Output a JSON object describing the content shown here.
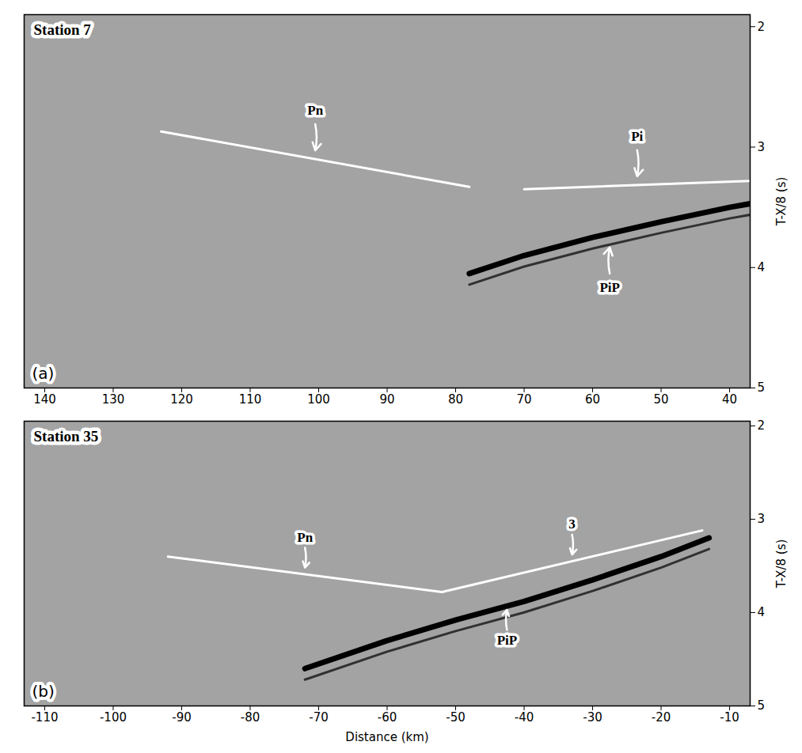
{
  "chart_data": [
    {
      "type": "line",
      "title": "Station 7",
      "panel_label": "(a)",
      "x_label": null,
      "y_label": "T-X/8 (s)",
      "xlim": [
        143,
        37
      ],
      "xticks": [
        140,
        130,
        120,
        110,
        100,
        90,
        80,
        70,
        60,
        50,
        40
      ],
      "ylim": [
        5,
        1.9
      ],
      "yticks": [
        2,
        3,
        4,
        5
      ],
      "series": [
        {
          "name": "Pn",
          "color": "#ffffff",
          "x": [
            123,
            78
          ],
          "values": [
            2.87,
            3.33
          ]
        },
        {
          "name": "Pi",
          "color": "#ffffff",
          "x": [
            70,
            37
          ],
          "values": [
            3.35,
            3.28
          ]
        },
        {
          "name": "PiP",
          "color": "#000000",
          "x": [
            78,
            70,
            60,
            50,
            40,
            37
          ],
          "values": [
            4.05,
            3.9,
            3.75,
            3.62,
            3.5,
            3.47
          ]
        }
      ]
    },
    {
      "type": "line",
      "title": "Station 35",
      "panel_label": "(b)",
      "x_label": "Distance (km)",
      "y_label": "T-X/8 (s)",
      "xlim": [
        -113,
        -7
      ],
      "xticks": [
        -110,
        -100,
        -90,
        -80,
        -70,
        -60,
        -50,
        -40,
        -30,
        -20,
        -10
      ],
      "ylim": [
        5,
        1.95
      ],
      "yticks": [
        2,
        3,
        4,
        5
      ],
      "series": [
        {
          "name": "Pn",
          "color": "#ffffff",
          "x": [
            -92,
            -52
          ],
          "values": [
            3.4,
            3.78
          ]
        },
        {
          "name": "3",
          "color": "#ffffff",
          "x": [
            -52,
            -14
          ],
          "values": [
            3.78,
            3.12
          ]
        },
        {
          "name": "PiP",
          "color": "#000000",
          "x": [
            -72,
            -60,
            -50,
            -40,
            -30,
            -20,
            -13
          ],
          "values": [
            4.6,
            4.3,
            4.08,
            3.88,
            3.65,
            3.4,
            3.2
          ]
        }
      ]
    }
  ]
}
